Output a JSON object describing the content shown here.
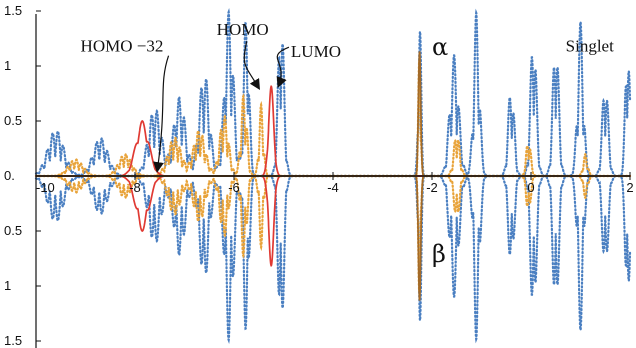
{
  "chart_data": {
    "type": "line",
    "title": "",
    "xlabel": "",
    "ylabel": "",
    "xlim": [
      -10,
      2
    ],
    "ylim": [
      -1.5,
      1.5
    ],
    "x_ticks": [
      "-10",
      "-8",
      "-6",
      "-4",
      "-2",
      "0",
      "2"
    ],
    "y_ticks_upper": [
      "1.5",
      "1",
      "0.5",
      "0."
    ],
    "y_ticks_lower": [
      "0.5",
      "1",
      "1.5"
    ],
    "grid": false,
    "legend": "none",
    "series": [
      {
        "style": "dotted",
        "color": "#4a7fc1",
        "spikes": [
          {
            "center": -9.6,
            "height": 0.42,
            "width": 0.55
          },
          {
            "center": -8.7,
            "height": 0.35,
            "width": 0.5
          },
          {
            "center": -7.6,
            "height": 0.62,
            "width": 0.45
          },
          {
            "center": -7.1,
            "height": 0.72,
            "width": 0.4
          },
          {
            "center": -6.6,
            "height": 0.95,
            "width": 0.35
          },
          {
            "center": -6.1,
            "height": 1.5,
            "width": 0.3
          },
          {
            "center": -5.75,
            "height": 1.5,
            "width": 0.18
          },
          {
            "center": -5.05,
            "height": 1.5,
            "width": 0.2
          },
          {
            "center": -2.25,
            "height": 1.5,
            "width": 0.1
          },
          {
            "center": -1.55,
            "height": 1.1,
            "width": 0.3
          },
          {
            "center": -1.1,
            "height": 1.5,
            "width": 0.2
          },
          {
            "center": -0.4,
            "height": 0.85,
            "width": 0.2
          },
          {
            "center": 0.05,
            "height": 1.35,
            "width": 0.2
          },
          {
            "center": 0.5,
            "height": 1.3,
            "width": 0.2
          },
          {
            "center": 1.0,
            "height": 1.4,
            "width": 0.2
          },
          {
            "center": 1.5,
            "height": 0.9,
            "width": 0.2
          },
          {
            "center": 1.95,
            "height": 1.3,
            "width": 0.15
          }
        ]
      },
      {
        "style": "dotted",
        "color": "#e8a33a",
        "spikes": [
          {
            "center": -9.2,
            "height": 0.15,
            "width": 0.5
          },
          {
            "center": -8.2,
            "height": 0.2,
            "width": 0.45
          },
          {
            "center": -7.2,
            "height": 0.35,
            "width": 0.45
          },
          {
            "center": -6.7,
            "height": 0.42,
            "width": 0.4
          },
          {
            "center": -6.2,
            "height": 0.55,
            "width": 0.3
          },
          {
            "center": -5.8,
            "height": 0.75,
            "width": 0.2
          },
          {
            "center": -5.45,
            "height": 0.65,
            "width": 0.15
          },
          {
            "center": -2.25,
            "height": 1.2,
            "width": 0.08
          },
          {
            "center": -1.5,
            "height": 0.4,
            "width": 0.2
          },
          {
            "center": -0.05,
            "height": 0.35,
            "width": 0.15
          },
          {
            "center": 1.1,
            "height": 0.2,
            "width": 0.15
          }
        ]
      },
      {
        "style": "solid",
        "color": "#e03a33",
        "spikes": [
          {
            "center": -7.85,
            "height": 0.5,
            "width": 0.45
          },
          {
            "center": -5.25,
            "height": 0.82,
            "width": 0.18
          }
        ]
      },
      {
        "style": "solid",
        "color": "#a36a28",
        "spikes": [
          {
            "center": -2.25,
            "height": 1.15,
            "width": 0.08
          }
        ]
      }
    ],
    "annotations": [
      {
        "text": "HOMO −32",
        "x": -9.1,
        "y": 1.13,
        "arrow_to": [
          -7.55,
          0.05
        ]
      },
      {
        "text": "HOMO",
        "x": -6.35,
        "y": 1.28,
        "arrow_to": [
          -5.5,
          0.8
        ]
      },
      {
        "text": "LUMO",
        "x": -4.85,
        "y": 1.08,
        "arrow_to": [
          -5.1,
          0.82
        ]
      },
      {
        "text": "α",
        "x": -2.0,
        "y": 1.1
      },
      {
        "text": "β",
        "x": -2.0,
        "y": -0.78
      },
      {
        "text": "Singlet",
        "x": 0.7,
        "y": 1.13
      }
    ]
  }
}
